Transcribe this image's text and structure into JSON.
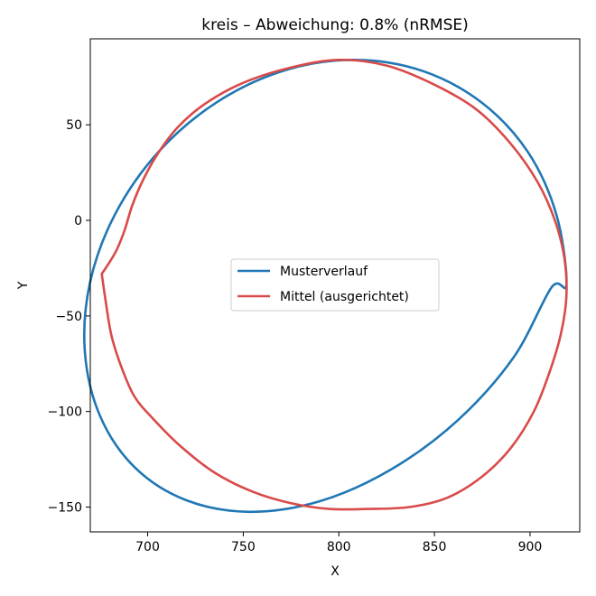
{
  "chart_data": {
    "type": "line",
    "title": "kreis – Abweichung: 0.8% (nRMSE)",
    "xlabel": "X",
    "ylabel": "Y",
    "xlim": [
      670,
      926
    ],
    "ylim": [
      -163,
      95
    ],
    "xticks": [
      700,
      750,
      800,
      850,
      900
    ],
    "yticks": [
      50,
      0,
      -50,
      -100,
      -150
    ],
    "xtick_labels": [
      "700",
      "750",
      "800",
      "850",
      "900"
    ],
    "ytick_labels": [
      "50",
      "0",
      "−50",
      "−100",
      "−150"
    ],
    "grid": false,
    "legend": {
      "position": "center"
    },
    "series": [
      {
        "name": "Musterverlauf",
        "color": "#1f77b4",
        "x": [
          919,
          913.9,
          899.0,
          874.9,
          843.8,
          808.3,
          771.4,
          736.3,
          705.9,
          683.0,
          669.8,
          667.2,
          675.3,
          693.5,
          720.1,
          753.2,
          789.9,
          827.2,
          862.2,
          891.4,
          911.2,
          919
        ],
        "y": [
          -33.5,
          2.6,
          35.6,
          61.5,
          78.2,
          84.0,
          78.4,
          61.9,
          36.1,
          3.3,
          -32.7,
          -69.3,
          -102.8,
          -129.5,
          -146.4,
          -152.5,
          -147.0,
          -130.4,
          -104.6,
          -71.7,
          -35.1,
          -33.5
        ]
      },
      {
        "name": "Mittel (ausgerichtet)",
        "color": "#d94a4a",
        "x": [
          676,
          680,
          684,
          688,
          692,
          698,
          706,
          716,
          730,
          750,
          775,
          800,
          825,
          850,
          872,
          890,
          904,
          913,
          918,
          919,
          916,
          910,
          902,
          890,
          875,
          857,
          837,
          815,
          795,
          775,
          755,
          735,
          717,
          703,
          693,
          686,
          681,
          678,
          676
        ],
        "y": [
          -28,
          -22,
          -15,
          -5,
          8,
          22,
          36,
          49,
          61,
          72,
          80,
          84,
          81,
          71,
          58,
          40,
          20,
          0,
          -20,
          -40,
          -60,
          -80,
          -100,
          -119,
          -134,
          -145,
          -150,
          -151,
          -151,
          -148,
          -142,
          -132,
          -118,
          -104,
          -92,
          -76,
          -60,
          -42,
          -28
        ]
      }
    ]
  }
}
